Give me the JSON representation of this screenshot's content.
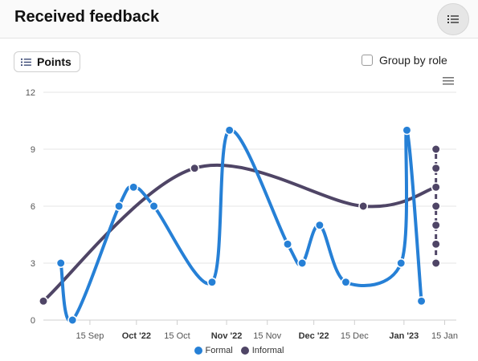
{
  "header": {
    "title": "Received feedback",
    "menu_icon": "list-icon"
  },
  "toolbar": {
    "points_label": "Points",
    "group_by_role_label": "Group by role",
    "group_by_role_checked": false
  },
  "colors": {
    "formal": "#2680d6",
    "informal": "#4f4566",
    "grid": "#e6e6e6",
    "axis": "#cfcfcf"
  },
  "chart_data": {
    "type": "line",
    "xlabel": "",
    "ylabel": "",
    "ylim": [
      0,
      12
    ],
    "y_ticks": [
      "0",
      "3",
      "6",
      "9",
      "12"
    ],
    "xlim": [
      "2022-08-30",
      "2023-01-19"
    ],
    "x_ticks": [
      {
        "label": "15 Sep",
        "date": "2022-09-15",
        "bold": false
      },
      {
        "label": "Oct '22",
        "date": "2022-10-01",
        "bold": true
      },
      {
        "label": "15 Oct",
        "date": "2022-10-15",
        "bold": false
      },
      {
        "label": "Nov '22",
        "date": "2022-11-01",
        "bold": true
      },
      {
        "label": "15 Nov",
        "date": "2022-11-15",
        "bold": false
      },
      {
        "label": "Dec '22",
        "date": "2022-12-01",
        "bold": true
      },
      {
        "label": "15 Dec",
        "date": "2022-12-15",
        "bold": false
      },
      {
        "label": "Jan '23",
        "date": "2023-01-01",
        "bold": true
      },
      {
        "label": "15 Jan",
        "date": "2023-01-15",
        "bold": false
      }
    ],
    "series": [
      {
        "name": "Formal",
        "points": [
          {
            "x": "2022-09-05",
            "y": 3
          },
          {
            "x": "2022-09-09",
            "y": 0
          },
          {
            "x": "2022-09-25",
            "y": 6
          },
          {
            "x": "2022-09-30",
            "y": 7
          },
          {
            "x": "2022-10-07",
            "y": 6
          },
          {
            "x": "2022-10-27",
            "y": 2
          },
          {
            "x": "2022-11-02",
            "y": 10
          },
          {
            "x": "2022-11-22",
            "y": 4
          },
          {
            "x": "2022-11-27",
            "y": 3
          },
          {
            "x": "2022-12-03",
            "y": 5
          },
          {
            "x": "2022-12-12",
            "y": 2
          },
          {
            "x": "2022-12-31",
            "y": 3
          },
          {
            "x": "2023-01-02",
            "y": 10
          },
          {
            "x": "2023-01-07",
            "y": 1
          }
        ]
      },
      {
        "name": "Informal",
        "points": [
          {
            "x": "2022-08-30",
            "y": 1
          },
          {
            "x": "2022-10-21",
            "y": 8
          },
          {
            "x": "2022-12-18",
            "y": 6
          },
          {
            "x": "2023-01-12",
            "y": 7
          },
          {
            "x": "2023-01-12",
            "y": 3
          },
          {
            "x": "2023-01-12",
            "y": 4
          },
          {
            "x": "2023-01-12",
            "y": 5
          },
          {
            "x": "2023-01-12",
            "y": 6
          },
          {
            "x": "2023-01-12",
            "y": 7
          },
          {
            "x": "2023-01-12",
            "y": 8
          },
          {
            "x": "2023-01-12",
            "y": 9
          }
        ]
      }
    ],
    "legend_position": "bottom-center",
    "grid": true
  }
}
